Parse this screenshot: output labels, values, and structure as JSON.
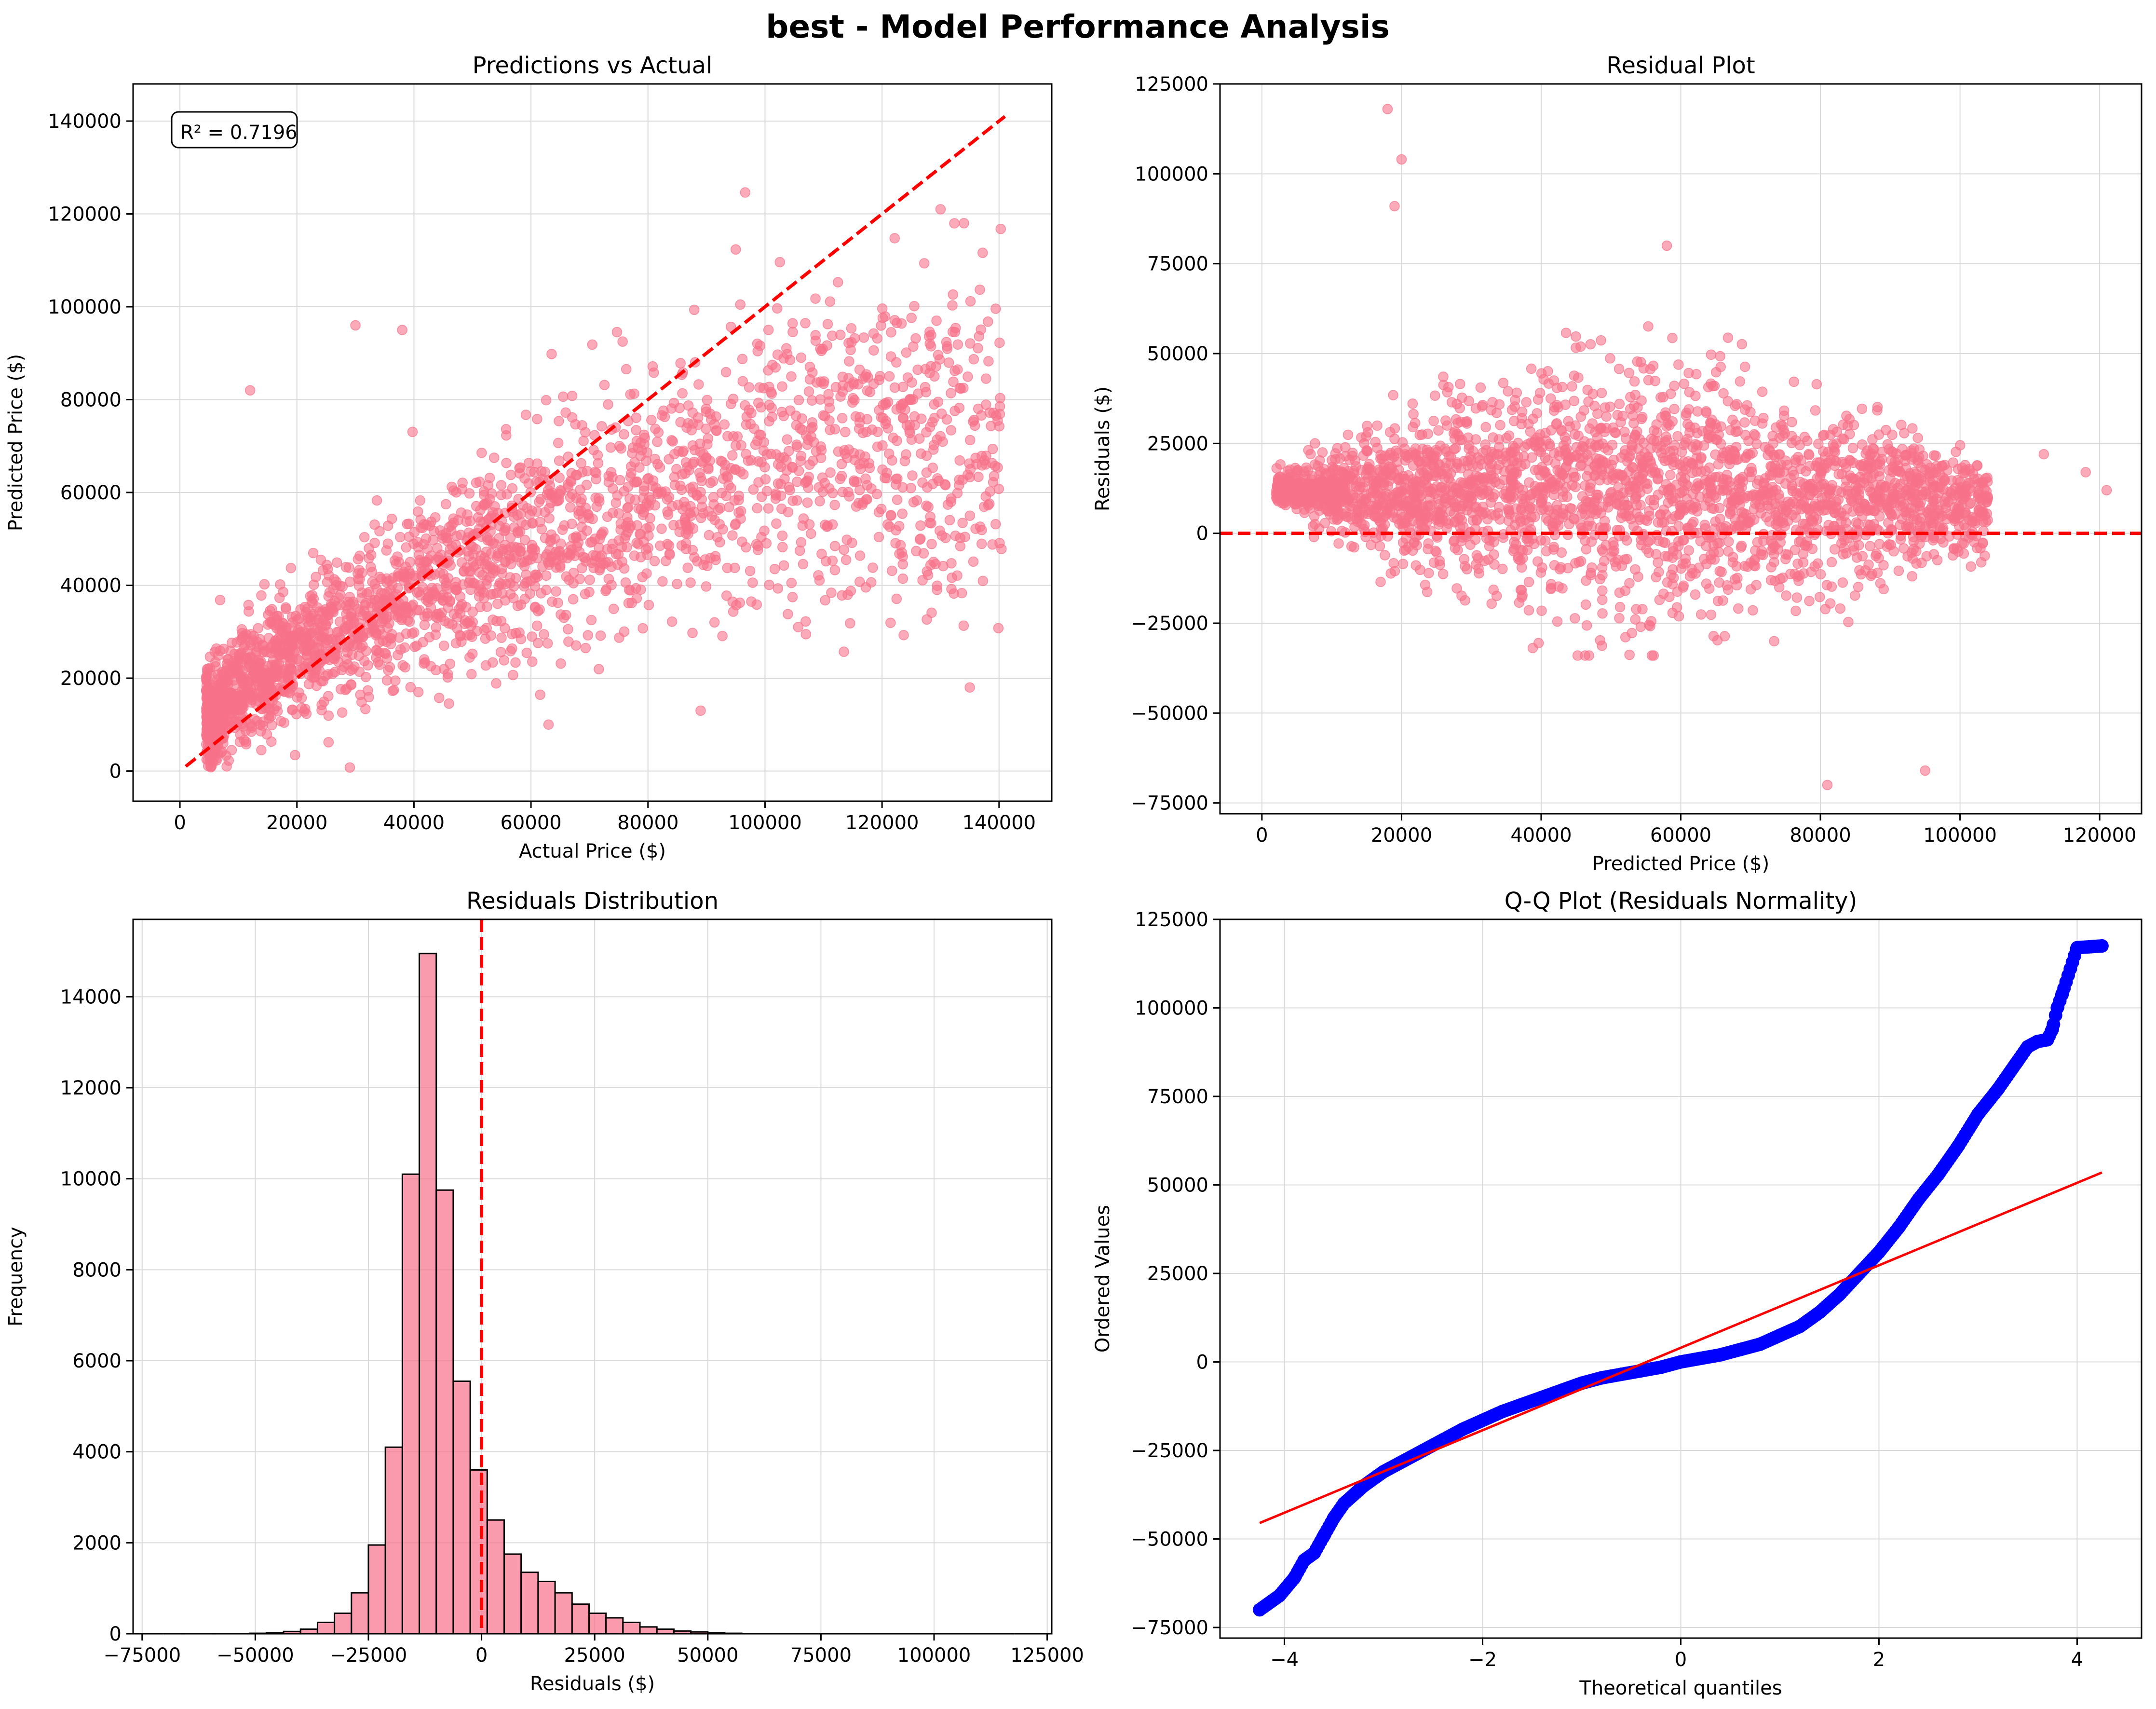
{
  "figure": {
    "title": "best - Model Performance Analysis",
    "colors": {
      "scatter": "#f77189",
      "reference_line": "#ff0000",
      "qq_points": "#0000ff",
      "grid": "#d9d9d9",
      "hist_edge": "#000000"
    }
  },
  "chart_data": [
    {
      "id": "pred_vs_actual",
      "type": "scatter",
      "title": "Predictions vs Actual",
      "xlabel": "Actual Price ($)",
      "ylabel": "Predicted Price ($)",
      "xlim": [
        -8000,
        149000
      ],
      "ylim": [
        -6500,
        148000
      ],
      "xticks": [
        0,
        20000,
        40000,
        60000,
        80000,
        100000,
        120000,
        140000
      ],
      "yticks": [
        0,
        20000,
        40000,
        60000,
        80000,
        100000,
        120000,
        140000
      ],
      "grid": true,
      "annotation": "R² = 0.7196",
      "reference_line": {
        "x": [
          1000,
          141000
        ],
        "y": [
          1000,
          141000
        ],
        "style": "dashed"
      },
      "points_description": "dense cloud, predicted rises with actual",
      "series": [
        {
          "x": [
            5000,
            10000,
            20000,
            30000,
            40000,
            50000,
            60000,
            70000,
            80000,
            90000,
            100000,
            110000,
            120000,
            130000,
            140000
          ],
          "y": [
            12000,
            18000,
            25000,
            32000,
            38000,
            44000,
            50000,
            55000,
            59000,
            63000,
            66000,
            68000,
            70000,
            72000,
            74000
          ]
        }
      ],
      "outliers": [
        {
          "x": 30000,
          "y": 96000
        },
        {
          "x": 38000,
          "y": 95000
        },
        {
          "x": 130000,
          "y": 121000
        },
        {
          "x": 134000,
          "y": 118000
        },
        {
          "x": 12000,
          "y": 82000
        },
        {
          "x": 89000,
          "y": 13000
        },
        {
          "x": 63000,
          "y": 10000
        },
        {
          "x": 135000,
          "y": 18000
        },
        {
          "x": 8000,
          "y": 1000
        }
      ]
    },
    {
      "id": "residual_plot",
      "type": "scatter",
      "title": "Residual Plot",
      "xlabel": "Predicted Price ($)",
      "ylabel": "Residuals ($)",
      "xlim": [
        -6000,
        126000
      ],
      "ylim": [
        -78000,
        125000
      ],
      "xticks": [
        0,
        20000,
        40000,
        60000,
        80000,
        100000,
        120000
      ],
      "yticks": [
        -75000,
        -50000,
        -25000,
        0,
        25000,
        50000,
        75000,
        100000,
        125000
      ],
      "ytick_labels": [
        "−75000",
        "−50000",
        "−25000",
        "0",
        "25000",
        "50000",
        "75000",
        "100000",
        "125000"
      ],
      "grid": true,
      "reference_line": {
        "y": 0,
        "style": "dashed"
      },
      "outliers": [
        {
          "x": 18000,
          "y": 118000
        },
        {
          "x": 20000,
          "y": 104000
        },
        {
          "x": 19000,
          "y": 91000
        },
        {
          "x": 81000,
          "y": -70000
        },
        {
          "x": 95000,
          "y": -66000
        },
        {
          "x": 112000,
          "y": 22000
        },
        {
          "x": 121000,
          "y": 12000
        },
        {
          "x": 118000,
          "y": 17000
        },
        {
          "x": 58000,
          "y": 80000
        }
      ]
    },
    {
      "id": "residuals_hist",
      "type": "bar",
      "title": "Residuals Distribution",
      "xlabel": "Residuals ($)",
      "ylabel": "Frequency",
      "xlim": [
        -77000,
        126000
      ],
      "ylim": [
        0,
        15700
      ],
      "xticks": [
        -75000,
        -50000,
        -25000,
        0,
        25000,
        50000,
        75000,
        100000,
        125000
      ],
      "xtick_labels": [
        "−75000",
        "−50000",
        "−25000",
        "0",
        "25000",
        "50000",
        "75000",
        "100000",
        "125000"
      ],
      "yticks": [
        0,
        2000,
        4000,
        6000,
        8000,
        10000,
        12000,
        14000
      ],
      "grid": true,
      "reference_line": {
        "x": 0,
        "style": "dashed"
      },
      "bin_start": -70000,
      "bin_width": 3750,
      "values": [
        5,
        5,
        5,
        5,
        5,
        10,
        20,
        50,
        100,
        250,
        450,
        900,
        1950,
        4100,
        10100,
        14950,
        9750,
        5550,
        3600,
        2500,
        1750,
        1350,
        1150,
        900,
        650,
        450,
        350,
        250,
        150,
        100,
        60,
        40,
        20,
        10,
        5,
        5,
        5,
        5,
        5,
        5,
        5,
        5,
        5,
        5,
        5,
        5,
        5,
        5,
        5,
        5
      ]
    },
    {
      "id": "qq_plot",
      "type": "scatter",
      "title": "Q-Q Plot (Residuals Normality)",
      "xlabel": "Theoretical quantiles",
      "ylabel": "Ordered Values",
      "xlim": [
        -4.65,
        4.65
      ],
      "ylim": [
        -78000,
        125000
      ],
      "xticks": [
        -4,
        -2,
        0,
        2,
        4
      ],
      "xtick_labels": [
        "−4",
        "−2",
        "0",
        "2",
        "4"
      ],
      "yticks": [
        -75000,
        -50000,
        -25000,
        0,
        25000,
        50000,
        75000,
        100000,
        125000
      ],
      "ytick_labels": [
        "−75000",
        "−50000",
        "−25000",
        "0",
        "25000",
        "50000",
        "75000",
        "100000",
        "125000"
      ],
      "grid": true,
      "fit_line": {
        "x": [
          -4.25,
          4.25
        ],
        "y": [
          -45500,
          53500
        ]
      },
      "series": [
        {
          "x": [
            -4.25,
            -4.05,
            -3.9,
            -3.8,
            -3.7,
            -3.6,
            -3.5,
            -3.4,
            -3.2,
            -3.0,
            -2.8,
            -2.6,
            -2.4,
            -2.2,
            -2.0,
            -1.8,
            -1.6,
            -1.4,
            -1.2,
            -1.0,
            -0.8,
            -0.6,
            -0.4,
            -0.2,
            0.0,
            0.2,
            0.4,
            0.6,
            0.8,
            1.0,
            1.2,
            1.4,
            1.6,
            1.8,
            2.0,
            2.2,
            2.4,
            2.6,
            2.8,
            3.0,
            3.2,
            3.4,
            3.5,
            3.6,
            3.7,
            3.75,
            3.8,
            3.85,
            4.0,
            4.25
          ],
          "y": [
            -70000,
            -66000,
            -61000,
            -56000,
            -54000,
            -49000,
            -44000,
            -40000,
            -35000,
            -31000,
            -28000,
            -25000,
            -22000,
            -19000,
            -16500,
            -14000,
            -12000,
            -10000,
            -8000,
            -6000,
            -4500,
            -3500,
            -2500,
            -1500,
            0,
            1000,
            2000,
            3500,
            5000,
            7500,
            10000,
            14000,
            19000,
            25000,
            31000,
            38000,
            46000,
            53000,
            61000,
            70000,
            77000,
            85000,
            89000,
            90500,
            91000,
            94000,
            100000,
            104000,
            117000,
            117500
          ]
        }
      ]
    }
  ]
}
